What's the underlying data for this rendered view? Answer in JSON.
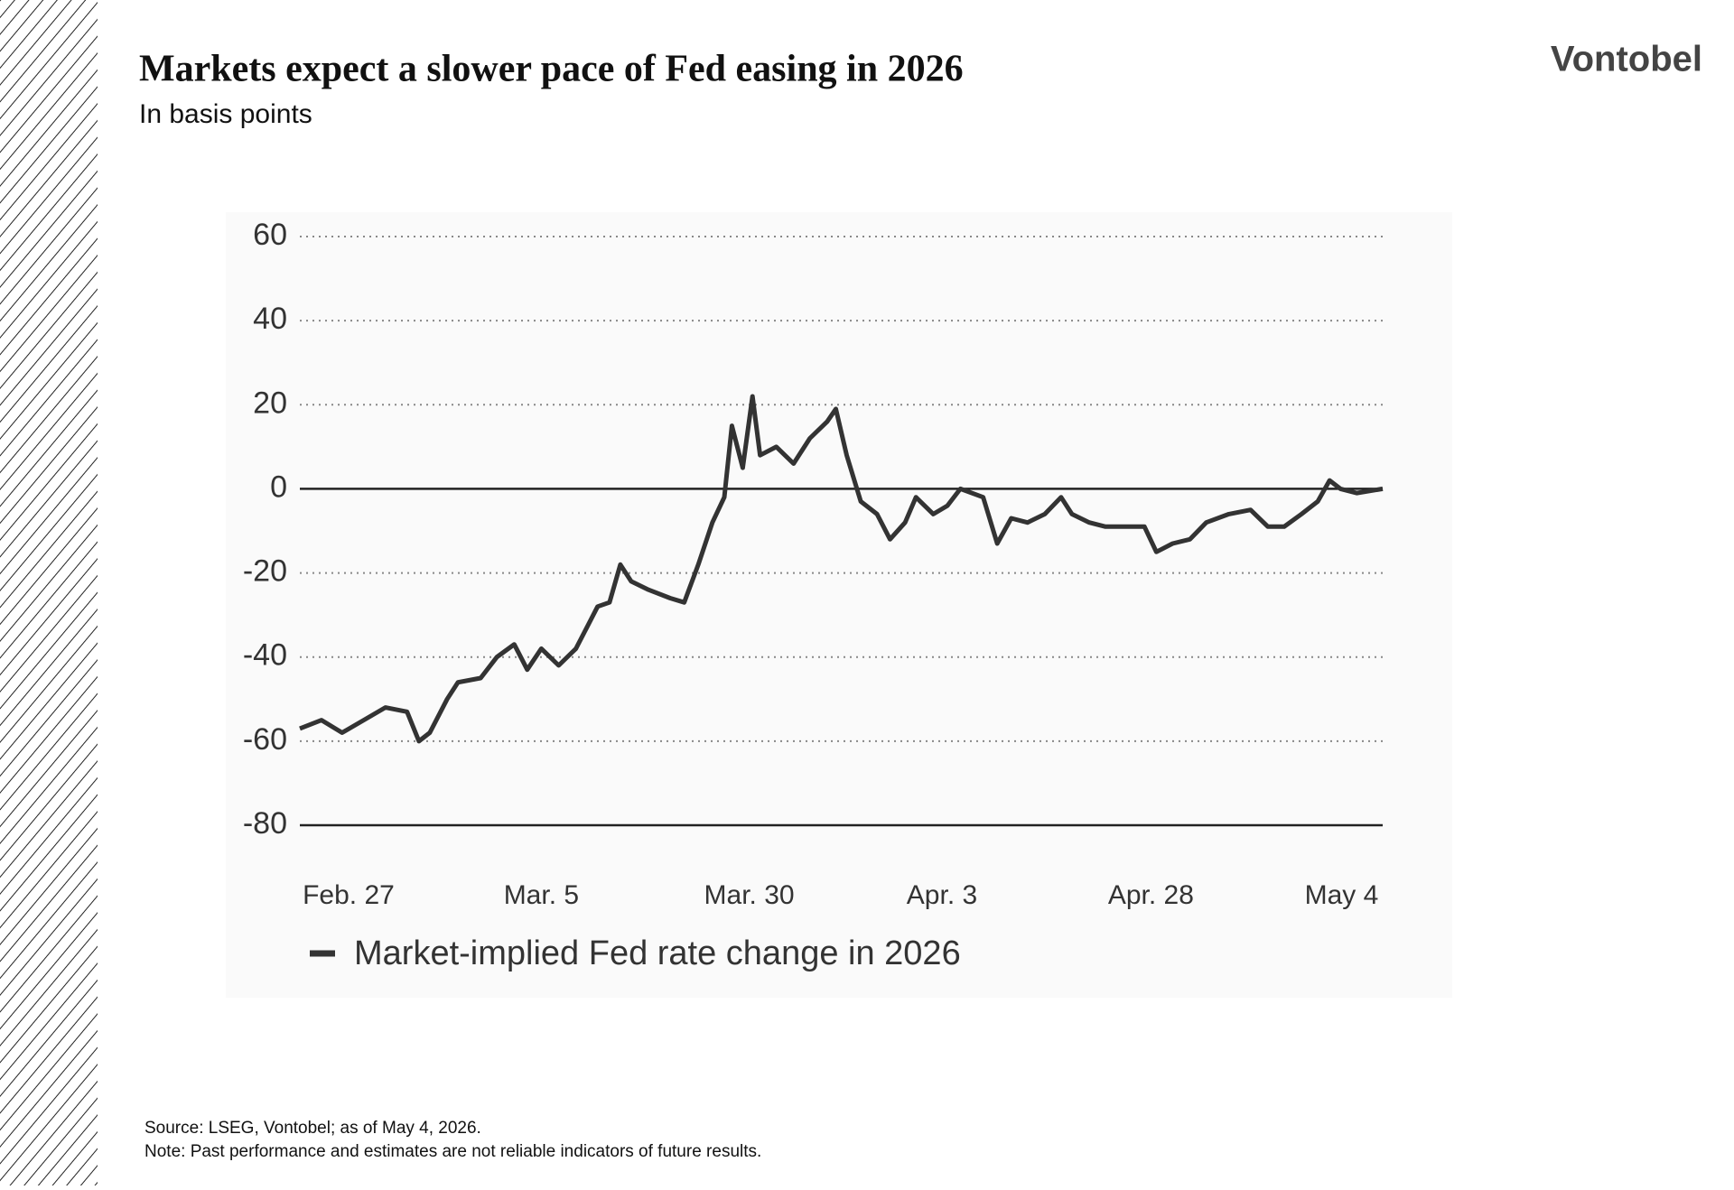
{
  "brand": "Vontobel",
  "source": "Source: LSEG, Vontobel; as of May 4, 2026.",
  "note": "Note: Past performance and estimates are not reliable indicators of future results.",
  "chart_data": {
    "type": "line",
    "title": "Markets expect a slower pace of Fed easing in 2026",
    "subtitle": "In basis points",
    "xlim": [
      0,
      100
    ],
    "xticks": [
      {
        "value": 4.5,
        "label": "Feb. 27"
      },
      {
        "value": 22.3,
        "label": "Mar. 5"
      },
      {
        "value": 41.5,
        "label": "Mar. 30"
      },
      {
        "value": 59.3,
        "label": "Apr. 3"
      },
      {
        "value": 78.6,
        "label": "Apr. 28"
      },
      {
        "value": 96.2,
        "label": "May 4"
      }
    ],
    "ylim": [
      -80,
      60
    ],
    "yticks": [
      -80,
      -60,
      -40,
      -20,
      0,
      20,
      40,
      60
    ],
    "grid": true,
    "x": [
      0,
      2,
      3.9,
      5.9,
      7.9,
      9.9,
      11,
      12,
      13.6,
      14.6,
      16.7,
      18.2,
      19.8,
      21,
      22.3,
      23.9,
      25.5,
      26.7,
      27.5,
      28.6,
      29.6,
      30.6,
      32.2,
      34.2,
      35.5,
      36.8,
      38.1,
      39.2,
      39.9,
      40.9,
      41.8,
      42.5,
      44,
      45.6,
      47.1,
      48.7,
      49.5,
      50.5,
      51.8,
      53.3,
      54.5,
      55.9,
      56.9,
      58.5,
      59.8,
      61,
      63.1,
      64.4,
      65.7,
      67.2,
      68.8,
      70.3,
      71.3,
      72.9,
      74.4,
      76.5,
      78,
      79.1,
      80.6,
      82.2,
      83.7,
      85.8,
      87.8,
      89.4,
      90.9,
      92.5,
      94,
      95.1,
      96.1,
      97.6,
      100
    ],
    "series": [
      {
        "name": "Market-implied Fed rate change in 2026",
        "color": "#333333",
        "values": [
          -57,
          -55,
          -58,
          -55,
          -52,
          -53,
          -60,
          -58,
          -50,
          -46,
          -45,
          -40,
          -37,
          -43,
          -38,
          -42,
          -38,
          -32,
          -28,
          -27,
          -18,
          -22,
          -24,
          -26,
          -27,
          -18,
          -8,
          -2,
          15,
          5,
          22,
          8,
          10,
          6,
          12,
          16,
          19,
          8,
          -3,
          -6,
          -12,
          -8,
          -2,
          -6,
          -4,
          0,
          -2,
          -13,
          -7,
          -8,
          -6,
          -2,
          -6,
          -8,
          -9,
          -9,
          -9,
          -15,
          -13,
          -12,
          -8,
          -6,
          -5,
          -9,
          -9,
          -6,
          -3,
          2,
          0,
          -1,
          0
        ]
      }
    ]
  }
}
